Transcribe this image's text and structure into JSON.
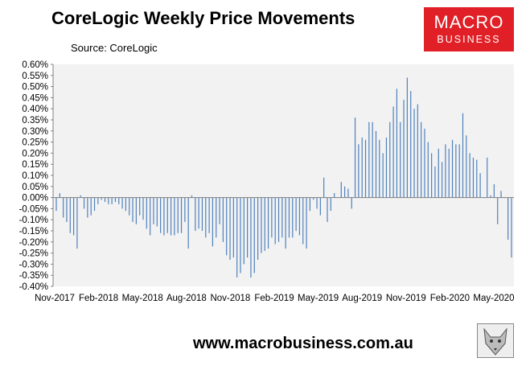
{
  "header": {
    "title": "CoreLogic Weekly Price Movements",
    "source": "Source: CoreLogic"
  },
  "logo": {
    "line1": "MACRO",
    "line2": "BUSINESS",
    "color": "#e01f26"
  },
  "footer": {
    "website": "www.macrobusiness.com.au"
  },
  "chart_data": {
    "type": "bar",
    "title": "CoreLogic Weekly Price Movements",
    "ylim": [
      -0.4,
      0.6
    ],
    "y_ticks": [
      "0.60%",
      "0.55%",
      "0.50%",
      "0.45%",
      "0.40%",
      "0.35%",
      "0.30%",
      "0.25%",
      "0.20%",
      "0.15%",
      "0.10%",
      "0.05%",
      "0.00%",
      "-0.05%",
      "-0.10%",
      "-0.15%",
      "-0.20%",
      "-0.25%",
      "-0.30%",
      "-0.35%",
      "-0.40%"
    ],
    "x_ticks": [
      "Nov-2017",
      "Feb-2018",
      "May-2018",
      "Aug-2018",
      "Nov-2018",
      "Feb-2019",
      "May-2019",
      "Aug-2019",
      "Nov-2019",
      "Feb-2020",
      "May-2020"
    ],
    "grid": false,
    "bar_color": "#4f81bd",
    "plot_background": "#f2f2f2",
    "values": [
      -0.06,
      0.02,
      -0.09,
      -0.11,
      -0.16,
      -0.17,
      -0.23,
      0.01,
      -0.05,
      -0.09,
      -0.08,
      -0.06,
      -0.03,
      -0.01,
      -0.02,
      -0.03,
      -0.03,
      -0.02,
      -0.03,
      -0.05,
      -0.06,
      -0.08,
      -0.11,
      -0.12,
      -0.08,
      -0.1,
      -0.14,
      -0.17,
      -0.12,
      -0.13,
      -0.16,
      -0.17,
      -0.16,
      -0.17,
      -0.17,
      -0.16,
      -0.16,
      -0.11,
      -0.23,
      0.01,
      -0.15,
      -0.14,
      -0.15,
      -0.18,
      -0.16,
      -0.22,
      -0.18,
      -0.12,
      -0.2,
      -0.26,
      -0.28,
      -0.27,
      -0.36,
      -0.34,
      -0.3,
      -0.27,
      -0.36,
      -0.34,
      -0.28,
      -0.25,
      -0.24,
      -0.23,
      -0.18,
      -0.21,
      -0.2,
      -0.18,
      -0.23,
      -0.18,
      -0.18,
      -0.15,
      -0.17,
      -0.21,
      -0.23,
      -0.06,
      -0.01,
      -0.05,
      -0.08,
      0.09,
      -0.11,
      -0.06,
      0.02,
      0.0,
      0.07,
      0.05,
      0.04,
      -0.05,
      0.36,
      0.24,
      0.27,
      0.26,
      0.34,
      0.34,
      0.3,
      0.26,
      0.2,
      0.27,
      0.34,
      0.41,
      0.49,
      0.34,
      0.44,
      0.54,
      0.48,
      0.4,
      0.42,
      0.34,
      0.31,
      0.25,
      0.2,
      0.14,
      0.22,
      0.16,
      0.24,
      0.22,
      0.26,
      0.24,
      0.24,
      0.38,
      0.28,
      0.2,
      0.18,
      0.17,
      0.11,
      0.0,
      0.18,
      0.01,
      0.06,
      -0.12,
      0.03,
      0.0,
      -0.19,
      -0.27
    ]
  }
}
